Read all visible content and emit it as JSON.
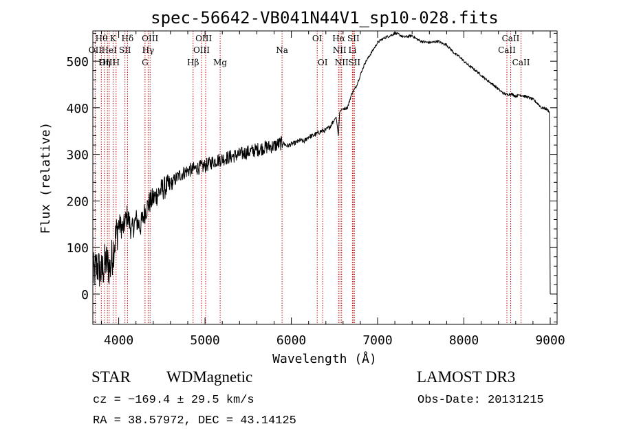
{
  "chart_data": {
    "type": "line",
    "title": "spec-56642-VB041N44V1_sp10-028.fits",
    "xlabel": "Wavelength (Å)",
    "ylabel": "Flux (relative)",
    "xlim": [
      3700,
      9080
    ],
    "ylim": [
      -65,
      565
    ],
    "xticks": [
      4000,
      5000,
      6000,
      7000,
      8000,
      9000
    ],
    "xtick_labels": [
      "4000",
      "5000",
      "6000",
      "7000",
      "8000",
      "9000"
    ],
    "yticks": [
      0,
      100,
      200,
      300,
      400,
      500
    ],
    "ytick_labels": [
      "0",
      "100",
      "200",
      "300",
      "400",
      "500"
    ],
    "series": [
      {
        "name": "spectrum",
        "color": "#000000",
        "x": [
          3700,
          3750,
          3800,
          3850,
          3900,
          3950,
          4000,
          4050,
          4100,
          4150,
          4200,
          4250,
          4300,
          4350,
          4400,
          4450,
          4500,
          4600,
          4700,
          4800,
          4900,
          5000,
          5100,
          5200,
          5300,
          5400,
          5500,
          5600,
          5700,
          5800,
          5850,
          5900,
          5950,
          6000,
          6050,
          6100,
          6150,
          6200,
          6250,
          6300,
          6350,
          6400,
          6450,
          6500,
          6520,
          6545,
          6560,
          6575,
          6600,
          6650,
          6700,
          6750,
          6800,
          6850,
          6900,
          6950,
          7000,
          7050,
          7100,
          7150,
          7200,
          7250,
          7300,
          7350,
          7400,
          7450,
          7500,
          7550,
          7600,
          7650,
          7700,
          7750,
          7800,
          7850,
          7900,
          7950,
          8000,
          8050,
          8100,
          8150,
          8200,
          8250,
          8300,
          8350,
          8400,
          8450,
          8500,
          8550,
          8600,
          8650,
          8700,
          8750,
          8800,
          8850,
          8900,
          8950,
          8990,
          9000
        ],
        "y": [
          40,
          60,
          45,
          70,
          55,
          110,
          150,
          140,
          170,
          135,
          160,
          145,
          175,
          195,
          205,
          215,
          225,
          235,
          255,
          265,
          270,
          275,
          285,
          290,
          295,
          300,
          305,
          310,
          315,
          318,
          322,
          325,
          318,
          322,
          325,
          330,
          328,
          338,
          340,
          345,
          350,
          352,
          360,
          375,
          380,
          340,
          390,
          395,
          398,
          400,
          430,
          445,
          470,
          495,
          510,
          525,
          540,
          547,
          552,
          555,
          560,
          557,
          552,
          553,
          555,
          548,
          543,
          541,
          540,
          541,
          543,
          538,
          535,
          525,
          515,
          510,
          500,
          492,
          485,
          478,
          470,
          462,
          455,
          448,
          440,
          432,
          428,
          430,
          425,
          428,
          425,
          422,
          418,
          410,
          400,
          398,
          392,
          0
        ]
      }
    ],
    "line_color": "#c00000",
    "lines": [
      {
        "name": "Hθ",
        "x": 3798
      },
      {
        "name": "Hη",
        "x": 3835
      },
      {
        "name": "OII",
        "x": 3727
      },
      {
        "name": "OIII",
        "x": 3869
      },
      {
        "name": "HeI",
        "x": 3889
      },
      {
        "name": "K",
        "x": 3934
      },
      {
        "name": "H",
        "x": 3969
      },
      {
        "name": "Hδ",
        "x": 4102
      },
      {
        "name": "SII",
        "x": 4072
      },
      {
        "name": "OIII",
        "x": 4363
      },
      {
        "name": "Hγ",
        "x": 4341
      },
      {
        "name": "G",
        "x": 4305
      },
      {
        "name": "Hβ",
        "x": 4861
      },
      {
        "name": "OIII",
        "x": 4959
      },
      {
        "name": "OIII",
        "x": 5007
      },
      {
        "name": "Mg",
        "x": 5175
      },
      {
        "name": "Na",
        "x": 5893
      },
      {
        "name": "OI",
        "x": 6300
      },
      {
        "name": "OI",
        "x": 6364
      },
      {
        "name": "NII",
        "x": 6548
      },
      {
        "name": "Hα",
        "x": 6563
      },
      {
        "name": "NII",
        "x": 6583
      },
      {
        "name": "SII",
        "x": 6716
      },
      {
        "name": "SII",
        "x": 6731
      },
      {
        "name": "Li",
        "x": 6708
      },
      {
        "name": "CaII",
        "x": 8498
      },
      {
        "name": "CaII",
        "x": 8542
      },
      {
        "name": "CaII",
        "x": 8662
      }
    ],
    "line_labels": [
      {
        "text": "Hθ",
        "row": 0,
        "anchor": 3800
      },
      {
        "text": "K",
        "row": 0,
        "anchor": 3934
      },
      {
        "text": "Hδ",
        "row": 0,
        "anchor": 4102
      },
      {
        "text": "OIII",
        "row": 0,
        "anchor": 4363
      },
      {
        "text": "OIII",
        "row": 0,
        "anchor": 4985
      },
      {
        "text": "OI",
        "row": 0,
        "anchor": 6300
      },
      {
        "text": "Hα",
        "row": 0,
        "anchor": 6550
      },
      {
        "text": "SII",
        "row": 0,
        "anchor": 6720
      },
      {
        "text": "CaII",
        "row": 0,
        "anchor": 8542
      },
      {
        "text": "OII",
        "row": 1,
        "anchor": 3727
      },
      {
        "text": "HeI",
        "row": 1,
        "anchor": 3889
      },
      {
        "text": "SII",
        "row": 1,
        "anchor": 4072
      },
      {
        "text": "Hγ",
        "row": 1,
        "anchor": 4341
      },
      {
        "text": "OIII",
        "row": 1,
        "anchor": 4959
      },
      {
        "text": "Na",
        "row": 1,
        "anchor": 5893
      },
      {
        "text": "NII",
        "row": 1,
        "anchor": 6560
      },
      {
        "text": "Li",
        "row": 1,
        "anchor": 6708
      },
      {
        "text": "CaII",
        "row": 1,
        "anchor": 8498
      },
      {
        "text": "OIII",
        "row": 2,
        "anchor": 3869
      },
      {
        "text": "Hη",
        "row": 2,
        "anchor": 3835
      },
      {
        "text": "H",
        "row": 2,
        "anchor": 3969
      },
      {
        "text": "G",
        "row": 2,
        "anchor": 4305
      },
      {
        "text": "Hβ",
        "row": 2,
        "anchor": 4861
      },
      {
        "text": "Mg",
        "row": 2,
        "anchor": 5175
      },
      {
        "text": "OI",
        "row": 2,
        "anchor": 6364
      },
      {
        "text": "NII",
        "row": 2,
        "anchor": 6583
      },
      {
        "text": "SII",
        "row": 2,
        "anchor": 6731
      },
      {
        "text": "CaII",
        "row": 2,
        "anchor": 8662
      }
    ]
  },
  "info": {
    "class": "STAR",
    "subclass": "WDMagnetic",
    "survey": "LAMOST DR3",
    "cz": "cz = −169.4 ± 29.5 km/s",
    "obs_date": "Obs-Date: 20131215",
    "radec": "RA =  38.57972, DEC =  43.14125"
  }
}
